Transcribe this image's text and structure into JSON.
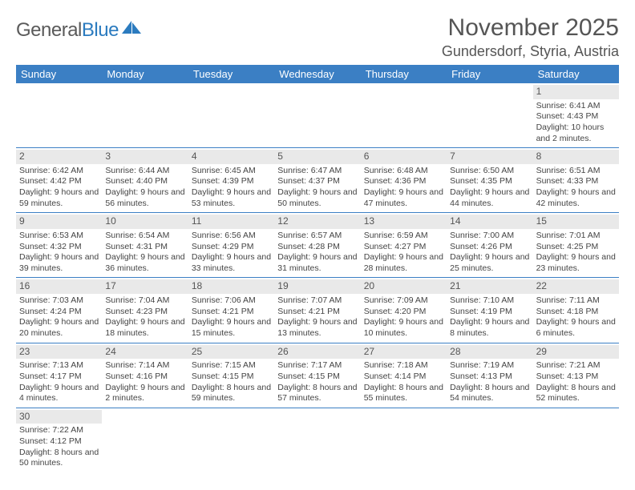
{
  "logo": {
    "textA": "General",
    "textB": "Blue"
  },
  "title": "November 2025",
  "location": "Gundersdorf, Styria, Austria",
  "dayNames": [
    "Sunday",
    "Monday",
    "Tuesday",
    "Wednesday",
    "Thursday",
    "Friday",
    "Saturday"
  ],
  "colors": {
    "headerBar": "#3b7fc4",
    "daynumBg": "#e9e9e9",
    "text": "#444444",
    "logoBlue": "#2b7bbf"
  },
  "weeks": [
    [
      null,
      null,
      null,
      null,
      null,
      null,
      {
        "n": "1",
        "sr": "Sunrise: 6:41 AM",
        "ss": "Sunset: 4:43 PM",
        "dl": "Daylight: 10 hours and 2 minutes."
      }
    ],
    [
      {
        "n": "2",
        "sr": "Sunrise: 6:42 AM",
        "ss": "Sunset: 4:42 PM",
        "dl": "Daylight: 9 hours and 59 minutes."
      },
      {
        "n": "3",
        "sr": "Sunrise: 6:44 AM",
        "ss": "Sunset: 4:40 PM",
        "dl": "Daylight: 9 hours and 56 minutes."
      },
      {
        "n": "4",
        "sr": "Sunrise: 6:45 AM",
        "ss": "Sunset: 4:39 PM",
        "dl": "Daylight: 9 hours and 53 minutes."
      },
      {
        "n": "5",
        "sr": "Sunrise: 6:47 AM",
        "ss": "Sunset: 4:37 PM",
        "dl": "Daylight: 9 hours and 50 minutes."
      },
      {
        "n": "6",
        "sr": "Sunrise: 6:48 AM",
        "ss": "Sunset: 4:36 PM",
        "dl": "Daylight: 9 hours and 47 minutes."
      },
      {
        "n": "7",
        "sr": "Sunrise: 6:50 AM",
        "ss": "Sunset: 4:35 PM",
        "dl": "Daylight: 9 hours and 44 minutes."
      },
      {
        "n": "8",
        "sr": "Sunrise: 6:51 AM",
        "ss": "Sunset: 4:33 PM",
        "dl": "Daylight: 9 hours and 42 minutes."
      }
    ],
    [
      {
        "n": "9",
        "sr": "Sunrise: 6:53 AM",
        "ss": "Sunset: 4:32 PM",
        "dl": "Daylight: 9 hours and 39 minutes."
      },
      {
        "n": "10",
        "sr": "Sunrise: 6:54 AM",
        "ss": "Sunset: 4:31 PM",
        "dl": "Daylight: 9 hours and 36 minutes."
      },
      {
        "n": "11",
        "sr": "Sunrise: 6:56 AM",
        "ss": "Sunset: 4:29 PM",
        "dl": "Daylight: 9 hours and 33 minutes."
      },
      {
        "n": "12",
        "sr": "Sunrise: 6:57 AM",
        "ss": "Sunset: 4:28 PM",
        "dl": "Daylight: 9 hours and 31 minutes."
      },
      {
        "n": "13",
        "sr": "Sunrise: 6:59 AM",
        "ss": "Sunset: 4:27 PM",
        "dl": "Daylight: 9 hours and 28 minutes."
      },
      {
        "n": "14",
        "sr": "Sunrise: 7:00 AM",
        "ss": "Sunset: 4:26 PM",
        "dl": "Daylight: 9 hours and 25 minutes."
      },
      {
        "n": "15",
        "sr": "Sunrise: 7:01 AM",
        "ss": "Sunset: 4:25 PM",
        "dl": "Daylight: 9 hours and 23 minutes."
      }
    ],
    [
      {
        "n": "16",
        "sr": "Sunrise: 7:03 AM",
        "ss": "Sunset: 4:24 PM",
        "dl": "Daylight: 9 hours and 20 minutes."
      },
      {
        "n": "17",
        "sr": "Sunrise: 7:04 AM",
        "ss": "Sunset: 4:23 PM",
        "dl": "Daylight: 9 hours and 18 minutes."
      },
      {
        "n": "18",
        "sr": "Sunrise: 7:06 AM",
        "ss": "Sunset: 4:21 PM",
        "dl": "Daylight: 9 hours and 15 minutes."
      },
      {
        "n": "19",
        "sr": "Sunrise: 7:07 AM",
        "ss": "Sunset: 4:21 PM",
        "dl": "Daylight: 9 hours and 13 minutes."
      },
      {
        "n": "20",
        "sr": "Sunrise: 7:09 AM",
        "ss": "Sunset: 4:20 PM",
        "dl": "Daylight: 9 hours and 10 minutes."
      },
      {
        "n": "21",
        "sr": "Sunrise: 7:10 AM",
        "ss": "Sunset: 4:19 PM",
        "dl": "Daylight: 9 hours and 8 minutes."
      },
      {
        "n": "22",
        "sr": "Sunrise: 7:11 AM",
        "ss": "Sunset: 4:18 PM",
        "dl": "Daylight: 9 hours and 6 minutes."
      }
    ],
    [
      {
        "n": "23",
        "sr": "Sunrise: 7:13 AM",
        "ss": "Sunset: 4:17 PM",
        "dl": "Daylight: 9 hours and 4 minutes."
      },
      {
        "n": "24",
        "sr": "Sunrise: 7:14 AM",
        "ss": "Sunset: 4:16 PM",
        "dl": "Daylight: 9 hours and 2 minutes."
      },
      {
        "n": "25",
        "sr": "Sunrise: 7:15 AM",
        "ss": "Sunset: 4:15 PM",
        "dl": "Daylight: 8 hours and 59 minutes."
      },
      {
        "n": "26",
        "sr": "Sunrise: 7:17 AM",
        "ss": "Sunset: 4:15 PM",
        "dl": "Daylight: 8 hours and 57 minutes."
      },
      {
        "n": "27",
        "sr": "Sunrise: 7:18 AM",
        "ss": "Sunset: 4:14 PM",
        "dl": "Daylight: 8 hours and 55 minutes."
      },
      {
        "n": "28",
        "sr": "Sunrise: 7:19 AM",
        "ss": "Sunset: 4:13 PM",
        "dl": "Daylight: 8 hours and 54 minutes."
      },
      {
        "n": "29",
        "sr": "Sunrise: 7:21 AM",
        "ss": "Sunset: 4:13 PM",
        "dl": "Daylight: 8 hours and 52 minutes."
      }
    ],
    [
      {
        "n": "30",
        "sr": "Sunrise: 7:22 AM",
        "ss": "Sunset: 4:12 PM",
        "dl": "Daylight: 8 hours and 50 minutes."
      },
      null,
      null,
      null,
      null,
      null,
      null
    ]
  ]
}
